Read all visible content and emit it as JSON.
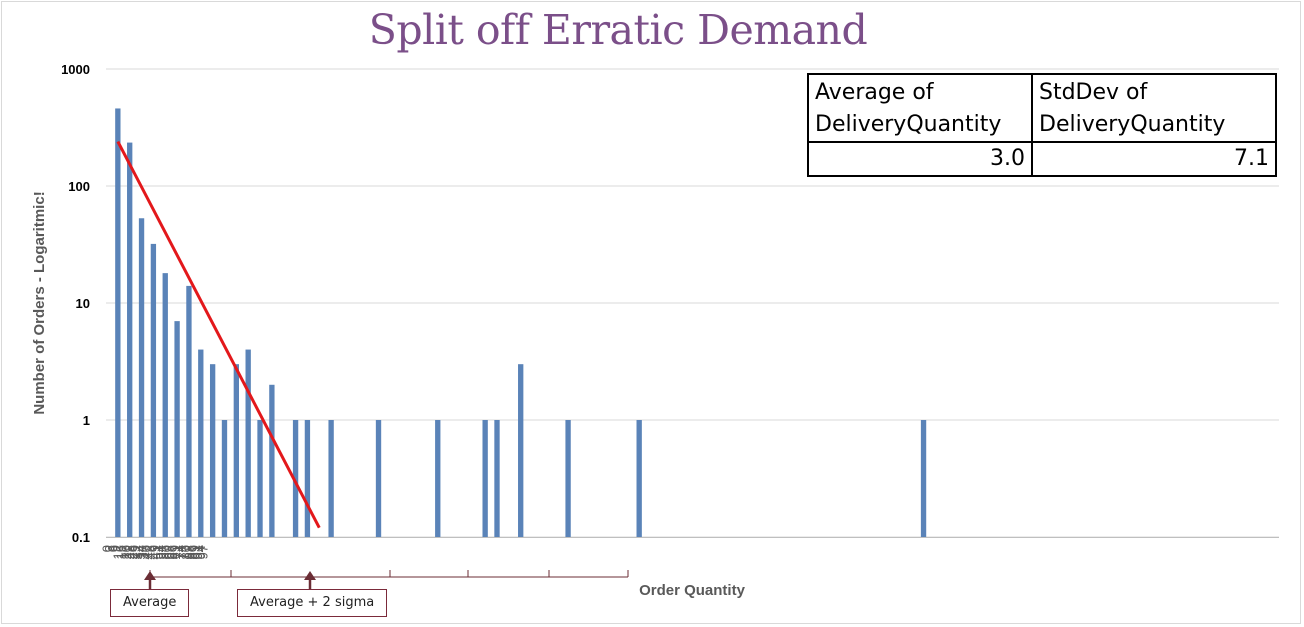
{
  "title": "Split off Erratic Demand",
  "stats_table": {
    "headers": [
      "Average of DeliveryQuantity",
      "StdDev of DeliveryQuantity"
    ],
    "header_lines": [
      [
        "Average of",
        "DeliveryQuantity"
      ],
      [
        "StdDev of",
        "DeliveryQuantity"
      ]
    ],
    "values": [
      "3.0",
      "7.1"
    ]
  },
  "annotations": {
    "average_label": "Average",
    "average_plus_label": "Average + 2 sigma",
    "arrow_color": "#6b2d35"
  },
  "chart_data": {
    "type": "bar",
    "title": "Split off Erratic Demand",
    "xlabel": "Order Quantity",
    "ylabel": "Number of Orders - Logaritmic!",
    "yscale": "log",
    "ylim": [
      0.1,
      1000
    ],
    "yticks": [
      0.1,
      1,
      10,
      100,
      1000
    ],
    "ytick_labels": [
      "0.1",
      "1",
      "10",
      "100",
      "1000"
    ],
    "xlim": [
      0,
      99
    ],
    "xtick_labels": [
      "0",
      "3",
      "6",
      "9",
      "12",
      "15",
      "17",
      "20",
      "23",
      "26",
      "29",
      "32",
      "34",
      "37",
      "40",
      "43",
      "46",
      "49",
      "51",
      "54",
      "57",
      "60",
      "63",
      "66",
      "69",
      "71",
      "74",
      "77",
      "80",
      "83",
      "86",
      "89",
      "91",
      "94",
      "97"
    ],
    "bars": [
      {
        "x": 1,
        "y": 460
      },
      {
        "x": 2,
        "y": 235
      },
      {
        "x": 3,
        "y": 53
      },
      {
        "x": 4,
        "y": 32
      },
      {
        "x": 5,
        "y": 18
      },
      {
        "x": 6,
        "y": 7
      },
      {
        "x": 7,
        "y": 14
      },
      {
        "x": 8,
        "y": 4
      },
      {
        "x": 9,
        "y": 3
      },
      {
        "x": 10,
        "y": 1
      },
      {
        "x": 11,
        "y": 3
      },
      {
        "x": 12,
        "y": 4
      },
      {
        "x": 13,
        "y": 1
      },
      {
        "x": 14,
        "y": 2
      },
      {
        "x": 16,
        "y": 1
      },
      {
        "x": 17,
        "y": 1
      },
      {
        "x": 19,
        "y": 1
      },
      {
        "x": 23,
        "y": 1
      },
      {
        "x": 28,
        "y": 1
      },
      {
        "x": 32,
        "y": 1
      },
      {
        "x": 33,
        "y": 1
      },
      {
        "x": 35,
        "y": 3
      },
      {
        "x": 39,
        "y": 1
      },
      {
        "x": 45,
        "y": 1
      },
      {
        "x": 69,
        "y": 1
      }
    ],
    "trendline": {
      "x": [
        1,
        18
      ],
      "y": [
        240,
        0.12
      ]
    },
    "colors": {
      "bar": "#5a83b8",
      "trend": "#e3181b",
      "grid": "#d9d9d9",
      "axis_text": "#595959"
    },
    "legend": "none",
    "grid": true
  }
}
